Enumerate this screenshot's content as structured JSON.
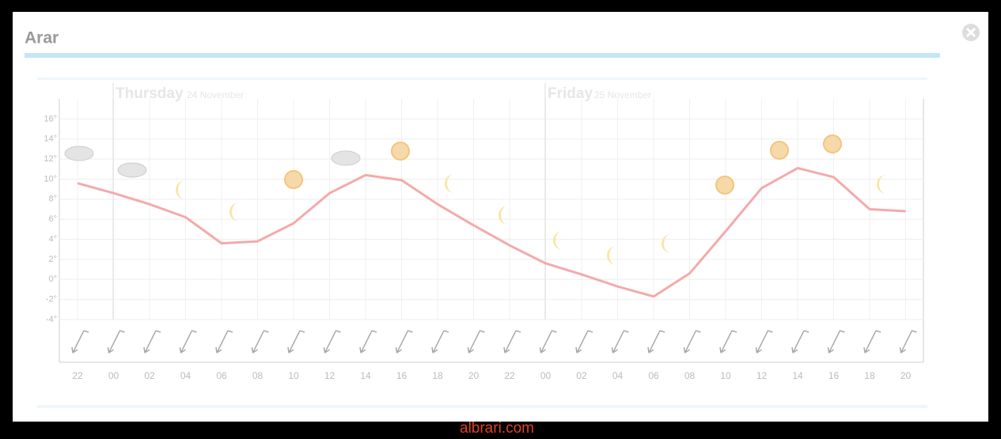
{
  "header": {
    "title": "Arar"
  },
  "footer": {
    "text": "albrari.com"
  },
  "chart_data": {
    "type": "line",
    "days": [
      {
        "name": "Thursday",
        "date": "24 November"
      },
      {
        "name": "Friday",
        "date": "25 November"
      }
    ],
    "categories": [
      "22",
      "00",
      "02",
      "04",
      "06",
      "08",
      "10",
      "12",
      "14",
      "16",
      "18",
      "20",
      "22",
      "00",
      "02",
      "04",
      "06",
      "08",
      "10",
      "12",
      "14",
      "16",
      "18",
      "20"
    ],
    "series": [
      {
        "color": "#f4aaaa",
        "values": [
          9.6,
          8.6,
          7.5,
          6.2,
          3.6,
          3.8,
          5.6,
          8.6,
          10.4,
          9.9,
          7.5,
          5.4,
          3.4,
          1.6,
          0.5,
          -0.7,
          -1.7,
          0.6,
          4.8,
          9.1,
          11.1,
          10.2,
          7,
          6.8
        ]
      }
    ],
    "ylim": [
      -4,
      18
    ],
    "yticks": [
      {
        "value": -4,
        "label": "-4°"
      },
      {
        "value": -2,
        "label": "-2°"
      },
      {
        "value": 0,
        "label": "0°"
      },
      {
        "value": 2,
        "label": "2°"
      },
      {
        "value": 4,
        "label": "4°"
      },
      {
        "value": 6,
        "label": "6°"
      },
      {
        "value": 8,
        "label": "8°"
      },
      {
        "value": 10,
        "label": "10°"
      },
      {
        "value": 12,
        "label": "12°"
      },
      {
        "value": 14,
        "label": "14°"
      },
      {
        "value": 16,
        "label": "16°"
      }
    ],
    "grid": true
  }
}
